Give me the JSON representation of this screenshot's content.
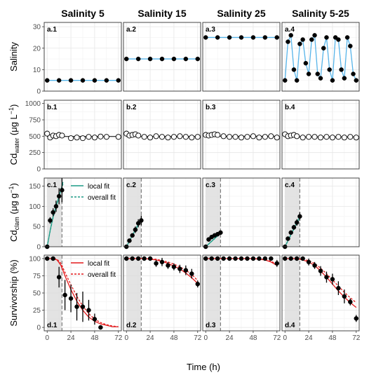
{
  "figure": {
    "x_axis_label": "Time (h)",
    "column_titles": [
      "Salinity 5",
      "Salinity 15",
      "Salinity 25",
      "Salinity 5-25"
    ],
    "row_ylabels": [
      {
        "main": "Salinity"
      },
      {
        "main": "Cd",
        "sub": "water",
        "unit": " (μg L",
        "sup": "−1",
        "close": ")"
      },
      {
        "main": "Cd",
        "sub": "clam",
        "unit": " (μg g",
        "sup": "−1",
        "close": ")"
      },
      {
        "main": "Survivorship (%)"
      }
    ],
    "x_ticks": [
      0,
      24,
      48,
      72
    ],
    "y_ticks": [
      [
        0,
        10,
        20,
        30
      ],
      [
        0,
        250,
        500,
        750,
        1000
      ],
      [
        0,
        50,
        100,
        150
      ],
      [
        0,
        25,
        50,
        75,
        100
      ]
    ],
    "legend_row3": {
      "items": [
        "local fit",
        "overall fit"
      ],
      "color": "#1f9e89"
    },
    "legend_row4": {
      "items": [
        "local fit",
        "overall fit"
      ],
      "color": "#e41a1c"
    },
    "colors": {
      "salinity_line": "#56b4e9",
      "uptake_fit": "#1f9e89",
      "survival_fit": "#e41a1c",
      "grid": "#e6e6e6",
      "shade": "#d9d9d9",
      "points": "#000000"
    }
  },
  "chart_data": [
    {
      "type": "line",
      "panel": "a.1",
      "title": "Salinity 5",
      "ylabel": "Salinity",
      "ylim": [
        0,
        32
      ],
      "xlim": [
        -3,
        75
      ],
      "x": [
        0,
        12,
        24,
        36,
        48,
        60,
        72
      ],
      "y": [
        5,
        5,
        5,
        5,
        5,
        5,
        5
      ]
    },
    {
      "type": "line",
      "panel": "a.2",
      "title": "Salinity 15",
      "ylim": [
        0,
        32
      ],
      "xlim": [
        -3,
        75
      ],
      "x": [
        0,
        12,
        24,
        36,
        48,
        60,
        72
      ],
      "y": [
        15,
        15,
        15,
        15,
        15,
        15,
        15
      ]
    },
    {
      "type": "line",
      "panel": "a.3",
      "title": "Salinity 25",
      "ylim": [
        0,
        32
      ],
      "xlim": [
        -3,
        75
      ],
      "x": [
        0,
        12,
        24,
        36,
        48,
        60,
        72
      ],
      "y": [
        25,
        25,
        25,
        25,
        25,
        25,
        25
      ]
    },
    {
      "type": "line",
      "panel": "a.4",
      "title": "Salinity 5-25",
      "ylim": [
        0,
        32
      ],
      "xlim": [
        -3,
        75
      ],
      "x": [
        0,
        3,
        6,
        9,
        12,
        15,
        18,
        21,
        24,
        27,
        30,
        33,
        36,
        39,
        42,
        45,
        48,
        51,
        54,
        57,
        60,
        63,
        66,
        69,
        72
      ],
      "y": [
        5,
        23,
        26,
        10,
        5,
        22,
        24,
        13,
        8,
        24,
        26,
        8,
        6,
        20,
        25,
        10,
        5,
        25,
        24,
        10,
        6,
        25,
        21,
        8,
        5
      ]
    },
    {
      "type": "scatter",
      "panel": "b.1",
      "ylabel": "Cdwater (μg L−1)",
      "ylim": [
        0,
        1050
      ],
      "xlim": [
        -3,
        75
      ],
      "x": [
        0,
        3,
        6,
        9,
        12,
        15,
        24,
        30,
        36,
        42,
        48,
        54,
        60,
        72
      ],
      "y": [
        540,
        480,
        510,
        500,
        520,
        510,
        470,
        480,
        470,
        490,
        480,
        495,
        490,
        490
      ],
      "fit_y": 495
    },
    {
      "type": "scatter",
      "panel": "b.2",
      "ylim": [
        0,
        1050
      ],
      "xlim": [
        -3,
        75
      ],
      "x": [
        0,
        3,
        6,
        9,
        12,
        18,
        24,
        30,
        36,
        42,
        48,
        54,
        60,
        66,
        72
      ],
      "y": [
        540,
        510,
        520,
        530,
        510,
        490,
        480,
        500,
        490,
        480,
        490,
        500,
        490,
        480,
        490
      ],
      "fit_y": 495
    },
    {
      "type": "scatter",
      "panel": "b.3",
      "ylim": [
        0,
        1050
      ],
      "xlim": [
        -3,
        75
      ],
      "x": [
        0,
        3,
        6,
        9,
        12,
        18,
        24,
        30,
        36,
        42,
        48,
        54,
        60,
        66,
        72
      ],
      "y": [
        520,
        510,
        520,
        530,
        520,
        500,
        490,
        490,
        480,
        490,
        500,
        480,
        490,
        500,
        480
      ],
      "fit_y": 500
    },
    {
      "type": "scatter",
      "panel": "b.4",
      "ylim": [
        0,
        1050
      ],
      "xlim": [
        -3,
        75
      ],
      "x": [
        0,
        3,
        6,
        9,
        12,
        18,
        24,
        30,
        36,
        42,
        48,
        54,
        60,
        66,
        72
      ],
      "y": [
        530,
        500,
        510,
        520,
        500,
        480,
        490,
        490,
        480,
        490,
        480,
        490,
        480,
        490,
        480
      ],
      "fit_y": 490
    },
    {
      "type": "scatter",
      "panel": "c.1",
      "ylabel": "Cdclam (μg g−1)",
      "ylim": [
        0,
        170
      ],
      "xlim": [
        -3,
        75
      ],
      "x": [
        0,
        3,
        6,
        9,
        12,
        15
      ],
      "y": [
        0,
        65,
        85,
        100,
        125,
        140
      ],
      "err": [
        0,
        8,
        10,
        14,
        20,
        30
      ],
      "local_fit": {
        "x": [
          0,
          3,
          6,
          9,
          12,
          15,
          16
        ],
        "y": [
          0,
          40,
          75,
          100,
          125,
          150,
          160
        ]
      },
      "overall_fit": {
        "x": [
          0,
          3,
          6,
          9,
          12,
          15,
          16
        ],
        "y": [
          0,
          38,
          72,
          98,
          122,
          147,
          155
        ]
      },
      "exposure_end": 15
    },
    {
      "type": "scatter",
      "panel": "c.2",
      "ylim": [
        0,
        170
      ],
      "xlim": [
        -3,
        75
      ],
      "x": [
        0,
        3,
        6,
        9,
        12,
        15
      ],
      "y": [
        0,
        15,
        28,
        42,
        58,
        65
      ],
      "err": [
        0,
        3,
        5,
        8,
        10,
        12
      ],
      "local_fit": {
        "x": [
          0,
          15
        ],
        "y": [
          0,
          70
        ]
      },
      "overall_fit": {
        "x": [
          0,
          15
        ],
        "y": [
          0,
          68
        ]
      },
      "exposure_end": 15
    },
    {
      "type": "scatter",
      "panel": "c.3",
      "ylim": [
        0,
        170
      ],
      "xlim": [
        -3,
        75
      ],
      "x": [
        0,
        3,
        6,
        9,
        12,
        15
      ],
      "y": [
        0,
        18,
        24,
        28,
        31,
        35
      ],
      "err": [
        0,
        3,
        4,
        4,
        5,
        5
      ],
      "local_fit": {
        "x": [
          0,
          15
        ],
        "y": [
          0,
          34
        ]
      },
      "overall_fit": {
        "x": [
          0,
          15
        ],
        "y": [
          0,
          33
        ]
      },
      "exposure_end": 15
    },
    {
      "type": "scatter",
      "panel": "c.4",
      "ylim": [
        0,
        170
      ],
      "xlim": [
        -3,
        75
      ],
      "x": [
        0,
        3,
        6,
        9,
        12,
        15
      ],
      "y": [
        0,
        20,
        35,
        48,
        60,
        75
      ],
      "err": [
        0,
        3,
        5,
        6,
        8,
        10
      ],
      "local_fit": {
        "x": [
          0,
          15
        ],
        "y": [
          0,
          75
        ]
      },
      "overall_fit": {
        "x": [
          0,
          15
        ],
        "y": [
          0,
          73
        ]
      },
      "exposure_end": 15
    },
    {
      "type": "scatter",
      "panel": "d.1",
      "ylabel": "Survivorship (%)",
      "ylim": [
        -5,
        105
      ],
      "xlim": [
        -3,
        75
      ],
      "x": [
        0,
        6,
        12,
        18,
        24,
        30,
        36,
        42,
        48,
        54
      ],
      "y": [
        100,
        100,
        73,
        47,
        42,
        30,
        30,
        25,
        12,
        0
      ],
      "err": [
        0,
        0,
        15,
        22,
        20,
        20,
        22,
        15,
        8,
        0
      ],
      "local_fit": {
        "x": [
          0,
          6,
          10,
          14,
          18,
          24,
          30,
          36,
          42,
          48,
          54,
          60,
          66,
          72
        ],
        "y": [
          100,
          100,
          98,
          90,
          75,
          55,
          38,
          25,
          15,
          9,
          5,
          3,
          1,
          1
        ]
      },
      "overall_fit": {
        "x": [
          0,
          6,
          10,
          14,
          18,
          24,
          30,
          36,
          42,
          48,
          54,
          60,
          66,
          72
        ],
        "y": [
          100,
          100,
          99,
          93,
          80,
          62,
          45,
          31,
          20,
          12,
          7,
          4,
          2,
          1
        ]
      },
      "exposure_end": 15
    },
    {
      "type": "scatter",
      "panel": "d.2",
      "ylim": [
        -5,
        105
      ],
      "xlim": [
        -3,
        75
      ],
      "x": [
        0,
        6,
        12,
        18,
        24,
        30,
        36,
        42,
        48,
        54,
        60,
        66,
        72
      ],
      "y": [
        100,
        100,
        100,
        100,
        100,
        93,
        95,
        90,
        88,
        85,
        83,
        78,
        63
      ],
      "err": [
        0,
        0,
        0,
        0,
        0,
        5,
        6,
        5,
        5,
        6,
        7,
        7,
        5
      ],
      "local_fit": {
        "x": [
          0,
          18,
          24,
          30,
          36,
          42,
          48,
          54,
          60,
          66,
          72
        ],
        "y": [
          100,
          100,
          99,
          98,
          96,
          93,
          89,
          85,
          79,
          72,
          64
        ]
      },
      "overall_fit": {
        "x": [
          0,
          18,
          24,
          30,
          36,
          42,
          48,
          54,
          60,
          66,
          72
        ],
        "y": [
          100,
          100,
          100,
          99,
          97,
          95,
          92,
          88,
          83,
          77,
          68
        ]
      },
      "exposure_end": 15
    },
    {
      "type": "scatter",
      "panel": "d.3",
      "ylim": [
        -5,
        105
      ],
      "xlim": [
        -3,
        75
      ],
      "x": [
        0,
        6,
        12,
        18,
        24,
        30,
        36,
        42,
        48,
        54,
        60,
        66,
        72
      ],
      "y": [
        100,
        100,
        100,
        100,
        100,
        100,
        100,
        100,
        100,
        100,
        100,
        100,
        93
      ],
      "err": [
        0,
        0,
        0,
        0,
        0,
        0,
        0,
        0,
        0,
        0,
        0,
        0,
        5
      ],
      "local_fit": {
        "x": [
          0,
          48,
          54,
          60,
          66,
          72
        ],
        "y": [
          100,
          100,
          99,
          98,
          95,
          90
        ]
      },
      "overall_fit": {
        "x": [
          0,
          48,
          54,
          60,
          66,
          72
        ],
        "y": [
          100,
          100,
          99.5,
          98.5,
          96,
          92
        ]
      },
      "exposure_end": 15
    },
    {
      "type": "scatter",
      "panel": "d.4",
      "ylim": [
        -5,
        105
      ],
      "xlim": [
        -3,
        75
      ],
      "x": [
        0,
        6,
        12,
        18,
        24,
        30,
        36,
        42,
        48,
        54,
        60,
        66,
        72
      ],
      "y": [
        100,
        100,
        100,
        100,
        95,
        90,
        82,
        73,
        70,
        57,
        45,
        37,
        13
      ],
      "err": [
        0,
        0,
        0,
        0,
        5,
        5,
        7,
        8,
        8,
        10,
        10,
        5,
        5
      ],
      "local_fit": {
        "x": [
          0,
          12,
          18,
          24,
          30,
          36,
          42,
          48,
          54,
          60,
          66,
          72
        ],
        "y": [
          100,
          100,
          98,
          95,
          90,
          82,
          73,
          63,
          53,
          44,
          36,
          29
        ]
      },
      "overall_fit": {
        "x": [
          0,
          12,
          18,
          24,
          30,
          36,
          42,
          48,
          54,
          60,
          66,
          72
        ],
        "y": [
          100,
          100,
          99,
          97,
          93,
          86,
          78,
          69,
          60,
          51,
          43,
          36
        ]
      },
      "exposure_end": 15
    }
  ]
}
